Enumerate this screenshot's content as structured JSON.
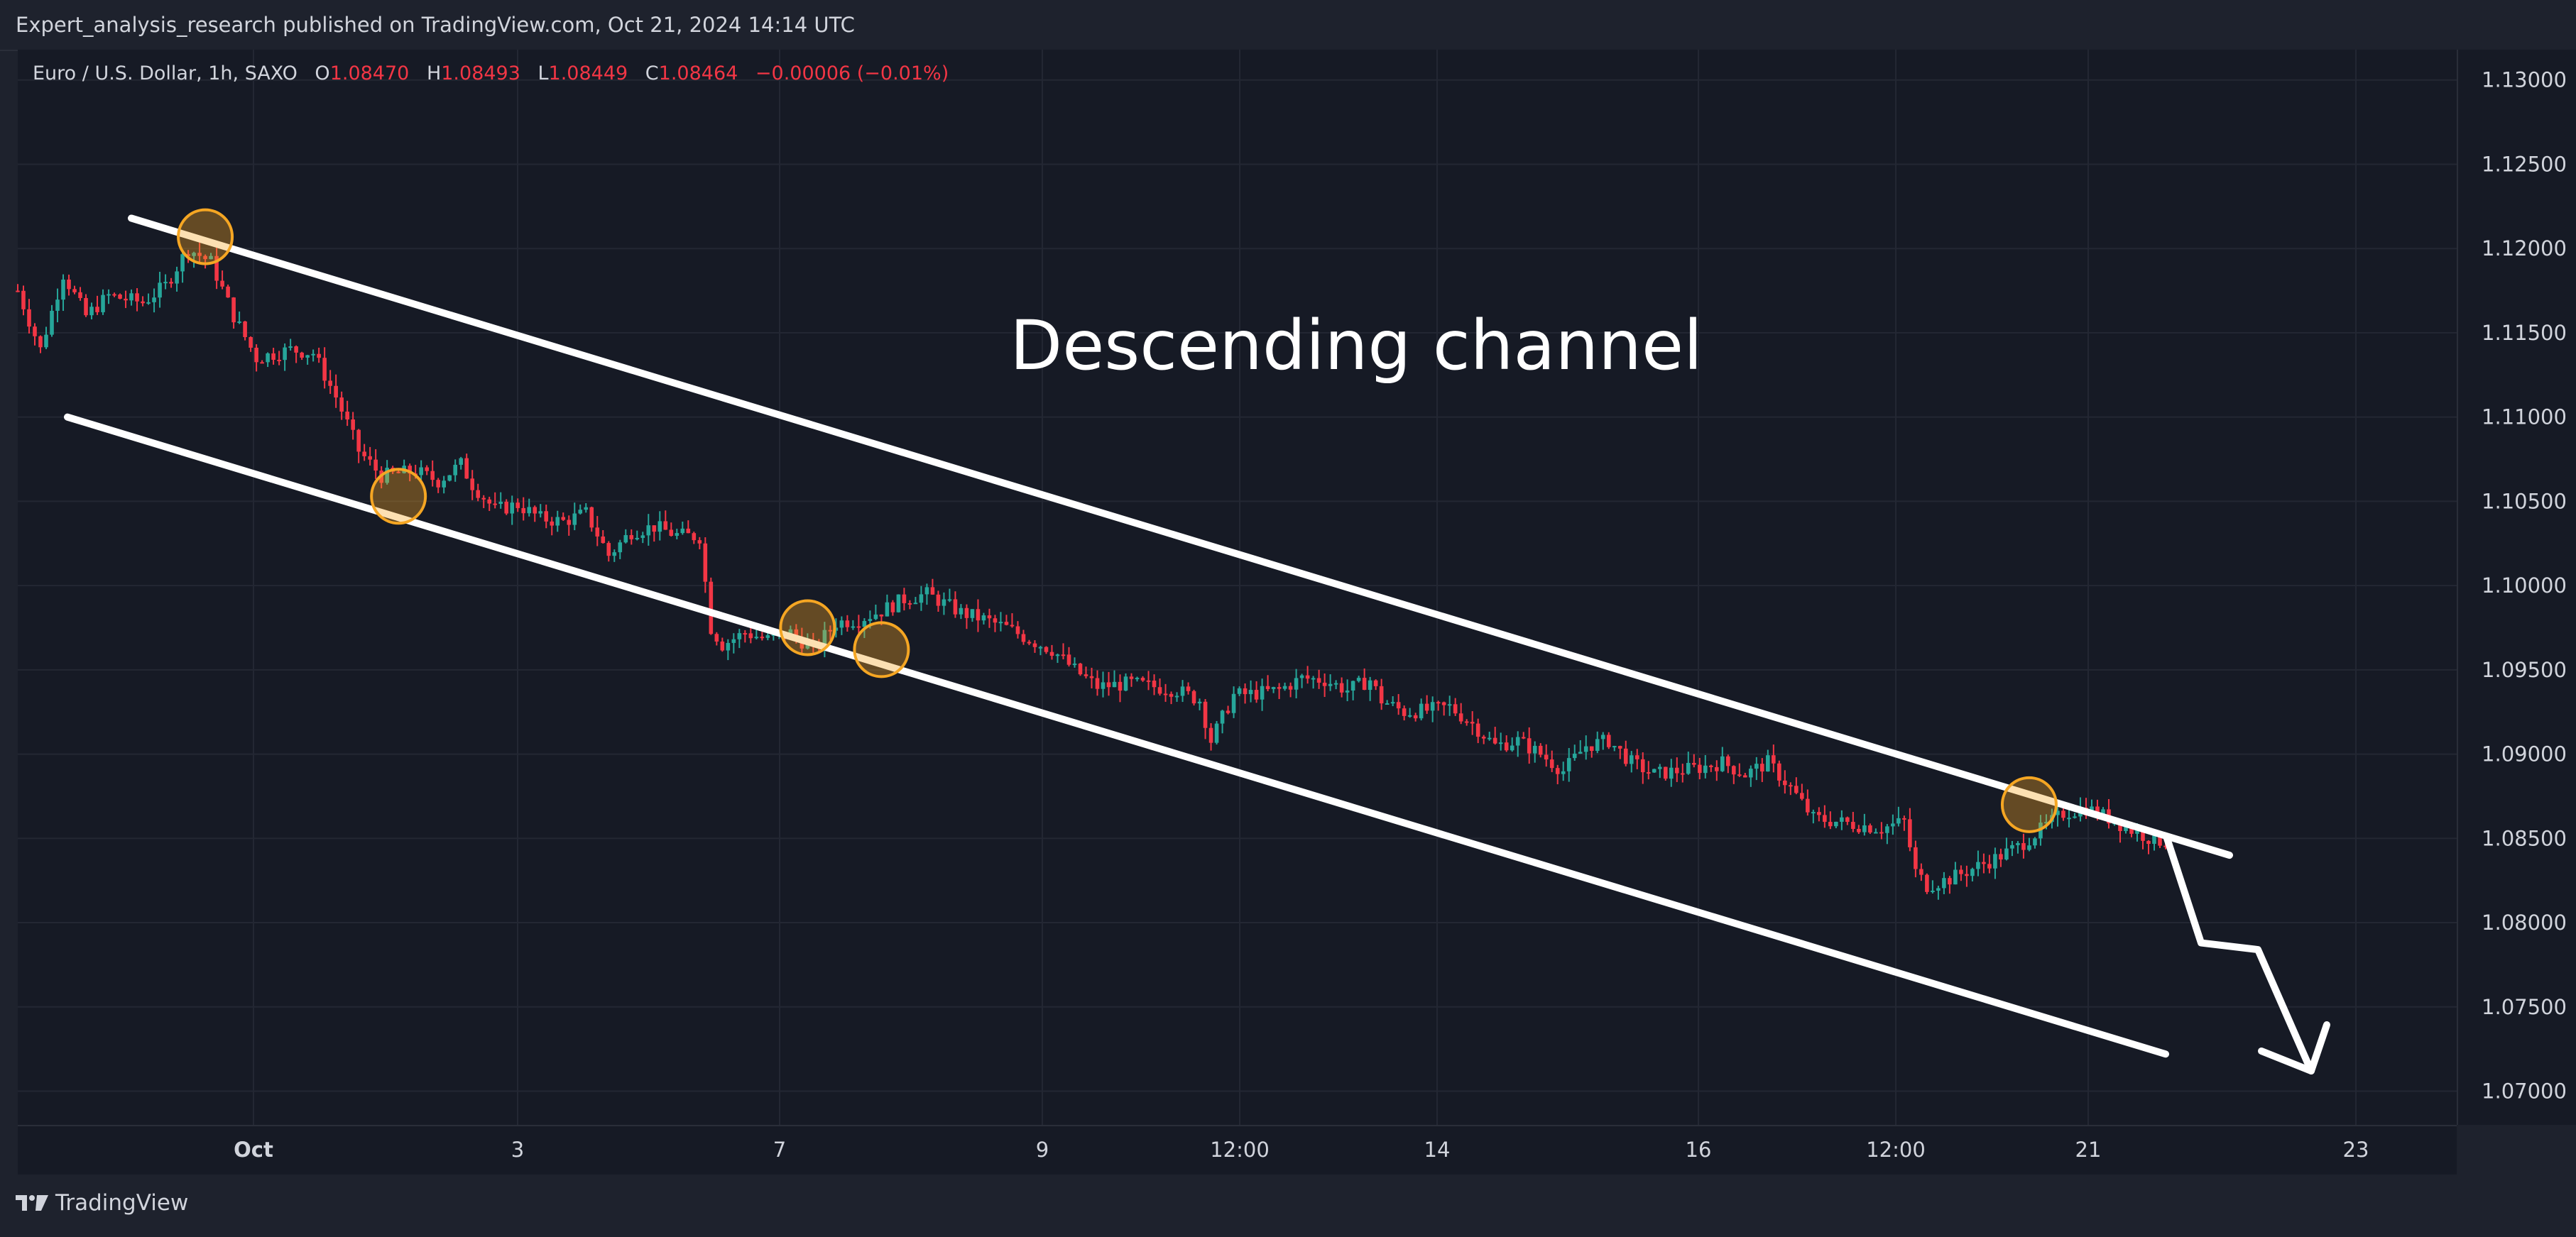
{
  "header": {
    "publisher_text": "Expert_analysis_research published on TradingView.com, Oct 21, 2024 14:14 UTC"
  },
  "legend": {
    "symbol": "Euro / U.S. Dollar, 1h, SAXO",
    "open_label": "O",
    "open": "1.08470",
    "high_label": "H",
    "high": "1.08493",
    "low_label": "L",
    "low": "1.08449",
    "close_label": "C",
    "close": "1.08464",
    "change": "−0.00006 (−0.01%)"
  },
  "footer": {
    "brand": "TradingView"
  },
  "colors": {
    "background": "#161a25",
    "up": "#26a69a",
    "down": "#f23645",
    "annotation": "#ffffff",
    "marker": "#f5a623",
    "text": "#d1d4dc"
  },
  "chart_data": {
    "type": "candlestick",
    "symbol": "Euro / U.S. Dollar",
    "interval": "1h",
    "ylim": [
      1.068,
      1.1318
    ],
    "price_ticks": [
      "1.13000",
      "1.12500",
      "1.12000",
      "1.11500",
      "1.11000",
      "1.10500",
      "1.10000",
      "1.09500",
      "1.09000",
      "1.08500",
      "1.08000",
      "1.07500",
      "1.07000"
    ],
    "time_ticks": [
      "Oct",
      "3",
      "7",
      "9",
      "12:00",
      "14",
      "16",
      "12:00",
      "21",
      "23"
    ],
    "annotation_text": "Descending channel",
    "price_path": [
      {
        "t": 0,
        "p": 1.1175
      },
      {
        "t": 4,
        "p": 1.114
      },
      {
        "t": 8,
        "p": 1.1185
      },
      {
        "t": 12,
        "p": 1.116
      },
      {
        "t": 16,
        "p": 1.1172
      },
      {
        "t": 22,
        "p": 1.1168
      },
      {
        "t": 26,
        "p": 1.1178
      },
      {
        "t": 30,
        "p": 1.12
      },
      {
        "t": 34,
        "p": 1.1192
      },
      {
        "t": 38,
        "p": 1.116
      },
      {
        "t": 42,
        "p": 1.1135
      },
      {
        "t": 48,
        "p": 1.114
      },
      {
        "t": 52,
        "p": 1.1138
      },
      {
        "t": 56,
        "p": 1.1112
      },
      {
        "t": 60,
        "p": 1.108
      },
      {
        "t": 64,
        "p": 1.1065
      },
      {
        "t": 70,
        "p": 1.1068
      },
      {
        "t": 74,
        "p": 1.1062
      },
      {
        "t": 78,
        "p": 1.1072
      },
      {
        "t": 80,
        "p": 1.106
      },
      {
        "t": 84,
        "p": 1.1045
      },
      {
        "t": 88,
        "p": 1.1048
      },
      {
        "t": 92,
        "p": 1.104
      },
      {
        "t": 96,
        "p": 1.1038
      },
      {
        "t": 100,
        "p": 1.1043
      },
      {
        "t": 104,
        "p": 1.1018
      },
      {
        "t": 108,
        "p": 1.1032
      },
      {
        "t": 112,
        "p": 1.1035
      },
      {
        "t": 116,
        "p": 1.103
      },
      {
        "t": 120,
        "p": 1.1029
      },
      {
        "t": 122,
        "p": 1.0975
      },
      {
        "t": 124,
        "p": 1.0965
      },
      {
        "t": 128,
        "p": 1.0972
      },
      {
        "t": 132,
        "p": 1.0968
      },
      {
        "t": 136,
        "p": 1.0972
      },
      {
        "t": 140,
        "p": 1.0962
      },
      {
        "t": 144,
        "p": 1.0978
      },
      {
        "t": 148,
        "p": 1.098
      },
      {
        "t": 152,
        "p": 1.0985
      },
      {
        "t": 156,
        "p": 1.0992
      },
      {
        "t": 160,
        "p": 1.0995
      },
      {
        "t": 166,
        "p": 1.0984
      },
      {
        "t": 170,
        "p": 1.098
      },
      {
        "t": 174,
        "p": 1.0975
      },
      {
        "t": 178,
        "p": 1.0968
      },
      {
        "t": 182,
        "p": 1.0962
      },
      {
        "t": 186,
        "p": 1.095
      },
      {
        "t": 190,
        "p": 1.094
      },
      {
        "t": 196,
        "p": 1.0942
      },
      {
        "t": 200,
        "p": 1.094
      },
      {
        "t": 204,
        "p": 1.0938
      },
      {
        "t": 208,
        "p": 1.0932
      },
      {
        "t": 210,
        "p": 1.0908
      },
      {
        "t": 214,
        "p": 1.0935
      },
      {
        "t": 218,
        "p": 1.0936
      },
      {
        "t": 222,
        "p": 1.0938
      },
      {
        "t": 226,
        "p": 1.0945
      },
      {
        "t": 230,
        "p": 1.0944
      },
      {
        "t": 234,
        "p": 1.0938
      },
      {
        "t": 238,
        "p": 1.0944
      },
      {
        "t": 240,
        "p": 1.0932
      },
      {
        "t": 244,
        "p": 1.0925
      },
      {
        "t": 248,
        "p": 1.0926
      },
      {
        "t": 252,
        "p": 1.0928
      },
      {
        "t": 256,
        "p": 1.0918
      },
      {
        "t": 260,
        "p": 1.0905
      },
      {
        "t": 264,
        "p": 1.0908
      },
      {
        "t": 268,
        "p": 1.09
      },
      {
        "t": 272,
        "p": 1.089
      },
      {
        "t": 276,
        "p": 1.0905
      },
      {
        "t": 280,
        "p": 1.0908
      },
      {
        "t": 284,
        "p": 1.0895
      },
      {
        "t": 288,
        "p": 1.0888
      },
      {
        "t": 292,
        "p": 1.089
      },
      {
        "t": 296,
        "p": 1.0892
      },
      {
        "t": 300,
        "p": 1.0895
      },
      {
        "t": 304,
        "p": 1.0888
      },
      {
        "t": 308,
        "p": 1.0895
      },
      {
        "t": 312,
        "p": 1.088
      },
      {
        "t": 316,
        "p": 1.0862
      },
      {
        "t": 320,
        "p": 1.086
      },
      {
        "t": 324,
        "p": 1.0858
      },
      {
        "t": 328,
        "p": 1.0856
      },
      {
        "t": 332,
        "p": 1.086
      },
      {
        "t": 334,
        "p": 1.083
      },
      {
        "t": 336,
        "p": 1.0822
      },
      {
        "t": 340,
        "p": 1.0826
      },
      {
        "t": 344,
        "p": 1.0832
      },
      {
        "t": 348,
        "p": 1.0838
      },
      {
        "t": 352,
        "p": 1.0845
      },
      {
        "t": 356,
        "p": 1.0855
      },
      {
        "t": 360,
        "p": 1.0865
      },
      {
        "t": 364,
        "p": 1.0868
      },
      {
        "t": 368,
        "p": 1.0862
      },
      {
        "t": 372,
        "p": 1.0855
      },
      {
        "t": 376,
        "p": 1.0849
      },
      {
        "t": 378,
        "p": 1.0848
      }
    ],
    "channel_upper": {
      "start": {
        "x_label": "Sep 30",
        "p": 1.1218
      },
      "end": {
        "x_label": "Oct 22",
        "p": 1.084
      }
    },
    "channel_lower": {
      "start": {
        "x_label": "Sep 26",
        "p": 1.11
      },
      "end": {
        "x_label": "Oct 22",
        "p": 1.0722
      }
    },
    "touch_points": [
      {
        "t": 33,
        "p": 1.1207
      },
      {
        "t": 67,
        "p": 1.1053
      },
      {
        "t": 139,
        "p": 1.0975
      },
      {
        "t": 152,
        "p": 1.0962
      },
      {
        "t": 354,
        "p": 1.087
      }
    ],
    "projection": [
      {
        "p": 1.085
      },
      {
        "p": 1.0788
      },
      {
        "p": 1.0784
      },
      {
        "p": 1.0712
      }
    ]
  }
}
